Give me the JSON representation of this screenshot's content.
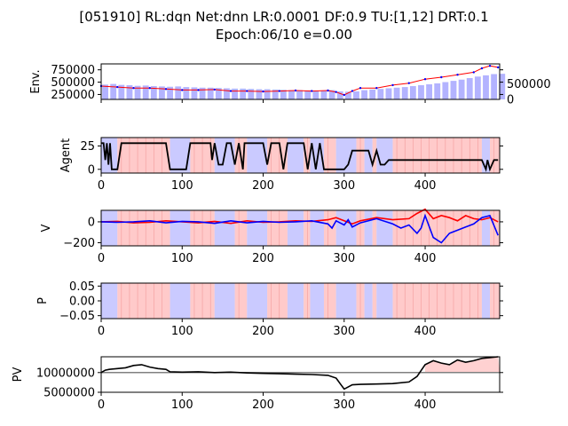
{
  "figure": {
    "title_line1": "[051910] RL:dqn Net:dnn LR:0.0001 DF:0.9 TU:[1,12] DRT:0.1",
    "title_line2": "Epoch:06/10 e=0.00"
  },
  "colors": {
    "buy_shade": "#ffb3b3",
    "sell_shade": "#b3b3ff",
    "volume_bar": "#b3b3ff",
    "price_line": "#ff0000",
    "price_marker": "#0000ff",
    "agent_line": "#000000",
    "v_buy": "#ff0000",
    "v_sell": "#0000ff",
    "pv_line": "#000000",
    "pv_base": "#808080"
  },
  "chart_data": [
    {
      "id": "env",
      "type": "bar+line",
      "ylabel": "Env.",
      "xlim": [
        0,
        492
      ],
      "ylim": [
        150000,
        870000
      ],
      "yticks": [
        250000,
        500000,
        750000
      ],
      "ytick_labels": [
        "250000",
        "500000",
        "750000"
      ],
      "y2lim": [
        0,
        1150000
      ],
      "y2ticks": [
        0,
        500000
      ],
      "y2tick_labels": [
        "0",
        "500000"
      ],
      "price": {
        "x": [
          0,
          20,
          40,
          60,
          80,
          100,
          120,
          140,
          160,
          180,
          200,
          220,
          240,
          260,
          280,
          290,
          300,
          310,
          320,
          340,
          360,
          380,
          400,
          420,
          440,
          460,
          470,
          480,
          490
        ],
        "y": [
          420000,
          400000,
          380000,
          380000,
          360000,
          340000,
          340000,
          350000,
          320000,
          320000,
          310000,
          320000,
          330000,
          320000,
          330000,
          300000,
          240000,
          320000,
          380000,
          380000,
          440000,
          480000,
          560000,
          600000,
          650000,
          700000,
          780000,
          830000,
          800000
        ]
      },
      "volume_bars": {
        "count": 50,
        "x_start": 5,
        "x_step": 10,
        "values": [
          480000,
          500000,
          470000,
          460000,
          440000,
          450000,
          430000,
          420000,
          410000,
          420000,
          400000,
          390000,
          380000,
          380000,
          370000,
          360000,
          350000,
          350000,
          340000,
          330000,
          330000,
          320000,
          310000,
          300000,
          300000,
          290000,
          280000,
          290000,
          300000,
          260000,
          250000,
          260000,
          300000,
          320000,
          340000,
          360000,
          380000,
          400000,
          430000,
          460000,
          490000,
          520000,
          560000,
          600000,
          640000,
          690000,
          740000,
          780000,
          820000,
          830000
        ]
      }
    },
    {
      "id": "agent",
      "type": "step-line",
      "ylabel": "Agent",
      "xlim": [
        0,
        492
      ],
      "ylim": [
        -4,
        34
      ],
      "yticks": [
        0,
        25
      ],
      "ytick_labels": [
        "0",
        "25"
      ],
      "xticks": [
        0,
        100,
        200,
        300,
        400
      ],
      "xtick_labels": [
        "0",
        "100",
        "200",
        "300",
        "400"
      ],
      "line": {
        "x": [
          0,
          3,
          5,
          7,
          9,
          11,
          13,
          15,
          20,
          25,
          80,
          85,
          90,
          95,
          100,
          105,
          110,
          135,
          137,
          140,
          145,
          150,
          155,
          160,
          165,
          170,
          175,
          177,
          180,
          185,
          200,
          205,
          210,
          220,
          225,
          230,
          250,
          255,
          260,
          265,
          270,
          275,
          280,
          285,
          290,
          300,
          305,
          310,
          320,
          330,
          335,
          340,
          345,
          350,
          355,
          360,
          470,
          475,
          477,
          480,
          485,
          490
        ],
        "y": [
          28,
          28,
          10,
          28,
          5,
          28,
          0,
          0,
          0,
          28,
          28,
          0,
          0,
          0,
          0,
          0,
          28,
          28,
          10,
          28,
          5,
          5,
          28,
          28,
          5,
          28,
          0,
          28,
          28,
          28,
          28,
          5,
          28,
          28,
          0,
          28,
          28,
          0,
          28,
          0,
          28,
          0,
          0,
          0,
          0,
          0,
          5,
          20,
          20,
          20,
          5,
          20,
          5,
          5,
          10,
          10,
          10,
          0,
          10,
          0,
          10,
          10
        ]
      },
      "shade_regions": [
        {
          "from": 0,
          "to": 20,
          "side": "sell"
        },
        {
          "from": 20,
          "to": 85,
          "side": "buy"
        },
        {
          "from": 85,
          "to": 110,
          "side": "sell"
        },
        {
          "from": 110,
          "to": 140,
          "side": "buy"
        },
        {
          "from": 140,
          "to": 165,
          "side": "sell"
        },
        {
          "from": 165,
          "to": 180,
          "side": "buy"
        },
        {
          "from": 180,
          "to": 205,
          "side": "sell"
        },
        {
          "from": 205,
          "to": 230,
          "side": "buy"
        },
        {
          "from": 230,
          "to": 250,
          "side": "sell"
        },
        {
          "from": 250,
          "to": 258,
          "side": "buy"
        },
        {
          "from": 258,
          "to": 275,
          "side": "sell"
        },
        {
          "from": 275,
          "to": 290,
          "side": "buy"
        },
        {
          "from": 290,
          "to": 315,
          "side": "sell"
        },
        {
          "from": 315,
          "to": 325,
          "side": "buy"
        },
        {
          "from": 325,
          "to": 335,
          "side": "sell"
        },
        {
          "from": 335,
          "to": 340,
          "side": "buy"
        },
        {
          "from": 340,
          "to": 360,
          "side": "sell"
        },
        {
          "from": 360,
          "to": 470,
          "side": "buy"
        },
        {
          "from": 470,
          "to": 480,
          "side": "sell"
        },
        {
          "from": 480,
          "to": 492,
          "side": "buy"
        }
      ]
    },
    {
      "id": "v",
      "type": "line",
      "ylabel": "V",
      "xlim": [
        0,
        492
      ],
      "ylim": [
        -230,
        110
      ],
      "yticks": [
        -200,
        0
      ],
      "ytick_labels": [
        "−200",
        "0"
      ],
      "xticks": [
        0,
        100,
        200,
        300,
        400
      ],
      "xtick_labels": [
        "0",
        "100",
        "200",
        "300",
        "400"
      ],
      "series": [
        {
          "color_key": "v_buy",
          "x": [
            0,
            20,
            40,
            60,
            80,
            100,
            120,
            140,
            160,
            180,
            200,
            220,
            240,
            260,
            280,
            290,
            300,
            310,
            320,
            340,
            360,
            380,
            390,
            400,
            410,
            420,
            430,
            440,
            450,
            460,
            470,
            480,
            490
          ],
          "y": [
            0,
            5,
            -10,
            -5,
            10,
            0,
            -10,
            5,
            -15,
            10,
            -5,
            0,
            10,
            5,
            20,
            40,
            10,
            -20,
            10,
            40,
            20,
            30,
            80,
            120,
            30,
            60,
            40,
            10,
            60,
            30,
            20,
            40,
            0
          ]
        },
        {
          "color_key": "v_sell",
          "x": [
            0,
            20,
            40,
            60,
            80,
            100,
            120,
            140,
            160,
            180,
            200,
            220,
            240,
            260,
            280,
            285,
            290,
            300,
            305,
            310,
            320,
            340,
            360,
            370,
            380,
            390,
            395,
            400,
            410,
            420,
            430,
            440,
            450,
            460,
            470,
            480,
            490
          ],
          "y": [
            0,
            -5,
            0,
            10,
            -10,
            5,
            0,
            -15,
            10,
            -10,
            5,
            -5,
            0,
            10,
            -20,
            -60,
            10,
            -30,
            20,
            -50,
            -10,
            30,
            -20,
            -60,
            -30,
            -110,
            -60,
            60,
            -150,
            -200,
            -110,
            -80,
            -50,
            -20,
            40,
            60,
            -130
          ]
        }
      ]
    },
    {
      "id": "p",
      "type": "line",
      "ylabel": "P",
      "xlim": [
        0,
        492
      ],
      "ylim": [
        -0.06,
        0.06
      ],
      "yticks": [
        -0.05,
        0.0,
        0.05
      ],
      "ytick_labels": [
        "−0.05",
        "0.00",
        "0.05"
      ],
      "xticks": [
        0,
        100,
        200,
        300,
        400
      ],
      "xtick_labels": [
        "0",
        "100",
        "200",
        "300",
        "400"
      ]
    },
    {
      "id": "pv",
      "type": "line",
      "ylabel": "PV",
      "xlim": [
        0,
        492
      ],
      "ylim": [
        5000000,
        14000000
      ],
      "yticks": [
        5000000,
        10000000
      ],
      "ytick_labels": [
        "5000000",
        "10000000"
      ],
      "xticks": [
        0,
        100,
        200,
        300,
        400
      ],
      "xtick_labels": [
        "0",
        "100",
        "200",
        "300",
        "400"
      ],
      "baseline": 10000000,
      "line": {
        "x": [
          0,
          5,
          10,
          20,
          30,
          40,
          50,
          60,
          70,
          80,
          85,
          100,
          120,
          140,
          160,
          180,
          200,
          220,
          240,
          260,
          280,
          290,
          295,
          300,
          310,
          320,
          340,
          360,
          380,
          390,
          400,
          410,
          420,
          430,
          440,
          450,
          460,
          470,
          480,
          490
        ],
        "y": [
          10000000,
          10600000,
          10800000,
          11000000,
          11200000,
          11800000,
          12000000,
          11400000,
          11000000,
          10800000,
          10200000,
          10100000,
          10200000,
          10000000,
          10100000,
          9900000,
          9800000,
          9700000,
          9600000,
          9500000,
          9300000,
          8600000,
          7200000,
          5800000,
          6900000,
          7000000,
          7100000,
          7200000,
          7600000,
          9000000,
          12000000,
          13000000,
          12400000,
          12000000,
          13200000,
          12600000,
          13000000,
          13600000,
          13800000,
          14000000
        ]
      },
      "shade_regions": [
        {
          "from": 400,
          "to": 492,
          "side": "buy"
        }
      ]
    }
  ]
}
